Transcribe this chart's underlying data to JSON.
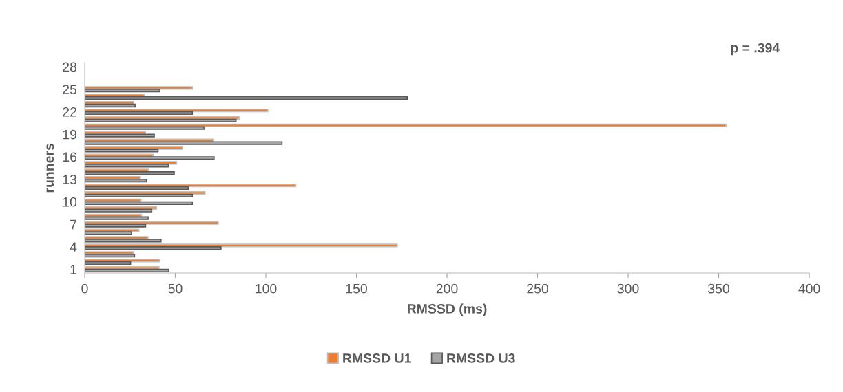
{
  "chart_data": {
    "type": "bar",
    "orientation": "horizontal",
    "xlabel": "RMSSD (ms)",
    "ylabel": "runners",
    "annotations": [
      "p = .394"
    ],
    "categories": [
      "28",
      null,
      null,
      "25",
      null,
      null,
      "22",
      null,
      null,
      "19",
      null,
      null,
      "16",
      null,
      null,
      "13",
      null,
      null,
      "10",
      null,
      null,
      "7",
      null,
      null,
      "4",
      null,
      null,
      "1"
    ],
    "series": [
      {
        "name": "RMSSD U1",
        "color": "#ed7d31",
        "values": [
          null,
          null,
          null,
          59.4,
          32.8,
          27.1,
          101.1,
          85.2,
          354,
          33.5,
          70.9,
          53.9,
          37.7,
          50.7,
          35.1,
          30.7,
          116.5,
          66.4,
          31.0,
          39.6,
          31.3,
          73.7,
          29.9,
          34.9,
          172.5,
          26.9,
          41.4,
          41.0
        ]
      },
      {
        "name": "RMSSD U3",
        "color": "#a5a5a5",
        "values": [
          null,
          null,
          null,
          41.5,
          178,
          27.8,
          59.4,
          83.5,
          65.8,
          38.4,
          108.9,
          40.5,
          71.4,
          46.2,
          49.4,
          34.1,
          57.1,
          59.4,
          59.4,
          37.0,
          35.0,
          33.6,
          25.8,
          42.1,
          75.2,
          27.5,
          25.3,
          46.4
        ]
      }
    ],
    "xlim": [
      0,
      400
    ],
    "xticks": [
      0,
      50,
      100,
      150,
      200,
      250,
      300,
      350,
      400
    ],
    "grid": false,
    "legend": "bottom"
  }
}
